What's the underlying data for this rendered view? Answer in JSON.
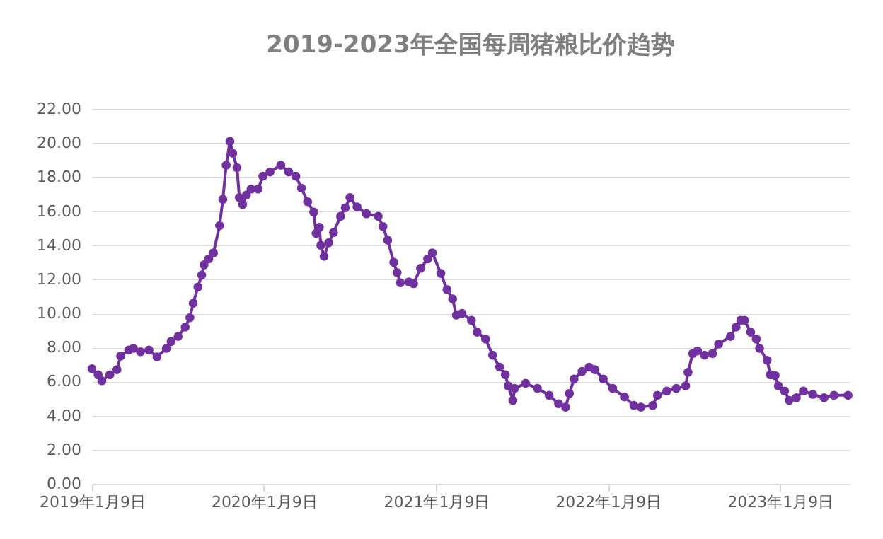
{
  "chart_data": {
    "type": "line",
    "title": "2019-2023年全国每周猪粮比价趋势",
    "x": [
      "2019-01-09",
      "2019-01-22",
      "2019-01-30",
      "2019-02-16",
      "2019-03-03",
      "2019-03-11",
      "2019-03-28",
      "2019-04-07",
      "2019-04-22",
      "2019-05-10",
      "2019-05-27",
      "2019-06-16",
      "2019-06-26",
      "2019-07-11",
      "2019-07-26",
      "2019-08-05",
      "2019-08-12",
      "2019-08-22",
      "2019-08-30",
      "2019-09-04",
      "2019-09-14",
      "2019-09-24",
      "2019-10-07",
      "2019-10-14",
      "2019-10-21",
      "2019-10-29",
      "2019-11-04",
      "2019-11-13",
      "2019-11-18",
      "2019-11-25",
      "2019-12-03",
      "2019-12-13",
      "2019-12-28",
      "2020-01-07",
      "2020-01-22",
      "2020-02-14",
      "2020-03-02",
      "2020-03-17",
      "2020-03-29",
      "2020-04-11",
      "2020-04-24",
      "2020-04-29",
      "2020-05-06",
      "2020-05-09",
      "2020-05-16",
      "2020-05-26",
      "2020-06-05",
      "2020-06-20",
      "2020-06-30",
      "2020-07-10",
      "2020-07-25",
      "2020-08-14",
      "2020-09-08",
      "2020-09-18",
      "2020-09-28",
      "2020-10-11",
      "2020-10-18",
      "2020-10-25",
      "2020-11-12",
      "2020-11-22",
      "2020-12-07",
      "2020-12-22",
      "2021-01-01",
      "2021-01-19",
      "2021-02-01",
      "2021-02-13",
      "2021-02-21",
      "2021-03-05",
      "2021-03-25",
      "2021-04-06",
      "2021-04-24",
      "2021-05-09",
      "2021-05-24",
      "2021-06-05",
      "2021-06-11",
      "2021-06-21",
      "2021-06-25",
      "2021-07-18",
      "2021-08-12",
      "2021-09-06",
      "2021-09-26",
      "2021-10-11",
      "2021-10-19",
      "2021-10-29",
      "2021-11-15",
      "2021-11-30",
      "2021-12-12",
      "2021-12-30",
      "2022-01-19",
      "2022-02-13",
      "2022-03-05",
      "2022-03-20",
      "2022-04-14",
      "2022-04-24",
      "2022-05-14",
      "2022-06-03",
      "2022-06-23",
      "2022-06-28",
      "2022-07-08",
      "2022-07-18",
      "2022-08-02",
      "2022-08-19",
      "2022-09-01",
      "2022-09-26",
      "2022-10-08",
      "2022-10-18",
      "2022-10-26",
      "2022-11-08",
      "2022-11-20",
      "2022-11-27",
      "2022-12-13",
      "2022-12-20",
      "2022-12-30",
      "2023-01-06",
      "2023-01-19",
      "2023-01-29",
      "2023-02-13",
      "2023-02-28",
      "2023-03-20",
      "2023-04-13",
      "2023-05-04",
      "2023-06-03"
    ],
    "series": [
      {
        "color": "#7030a0",
        "values": [
          6.75,
          6.4,
          6.05,
          6.4,
          6.7,
          7.5,
          7.85,
          7.95,
          7.75,
          7.85,
          7.45,
          7.95,
          8.35,
          8.65,
          9.2,
          9.75,
          10.6,
          11.55,
          12.25,
          12.85,
          13.2,
          13.55,
          15.15,
          16.7,
          18.7,
          20.1,
          19.4,
          18.55,
          16.8,
          16.4,
          16.95,
          17.3,
          17.3,
          18.05,
          18.3,
          18.7,
          18.3,
          18.05,
          17.35,
          16.55,
          15.95,
          14.7,
          15.05,
          14.0,
          13.35,
          14.15,
          14.75,
          15.7,
          16.2,
          16.8,
          16.25,
          15.85,
          15.7,
          15.1,
          14.3,
          13.0,
          12.4,
          11.8,
          11.85,
          11.75,
          12.65,
          13.2,
          13.55,
          12.35,
          11.4,
          10.85,
          9.9,
          10.0,
          9.6,
          8.9,
          8.5,
          7.55,
          6.85,
          6.4,
          5.75,
          4.9,
          5.6,
          5.9,
          5.6,
          5.2,
          4.7,
          4.5,
          5.3,
          6.15,
          6.6,
          6.85,
          6.7,
          6.15,
          5.6,
          5.1,
          4.6,
          4.5,
          4.6,
          5.2,
          5.45,
          5.6,
          5.75,
          6.55,
          7.65,
          7.8,
          7.55,
          7.65,
          8.2,
          8.65,
          9.2,
          9.6,
          9.6,
          8.9,
          8.5,
          7.95,
          7.25,
          6.4,
          6.35,
          5.75,
          5.45,
          4.9,
          5.05,
          5.45,
          5.25,
          5.05,
          5.2,
          5.2
        ]
      }
    ],
    "xlim": [
      "2019-01-09",
      "2023-06-05"
    ],
    "xticks": [
      {
        "value": "2019-01-09",
        "label": "2019年1月9日"
      },
      {
        "value": "2020-01-09",
        "label": "2020年1月9日"
      },
      {
        "value": "2021-01-09",
        "label": "2021年1月9日"
      },
      {
        "value": "2022-01-09",
        "label": "2022年1月9日"
      },
      {
        "value": "2023-01-09",
        "label": "2023年1月9日"
      }
    ],
    "ylim": [
      0,
      22
    ],
    "yticks": [
      {
        "value": 0,
        "label": "0.00"
      },
      {
        "value": 2,
        "label": "2.00"
      },
      {
        "value": 4,
        "label": "4.00"
      },
      {
        "value": 6,
        "label": "6.00"
      },
      {
        "value": 8,
        "label": "8.00"
      },
      {
        "value": 10,
        "label": "10.00"
      },
      {
        "value": 12,
        "label": "12.00"
      },
      {
        "value": 14,
        "label": "14.00"
      },
      {
        "value": 16,
        "label": "16.00"
      },
      {
        "value": 18,
        "label": "18.00"
      },
      {
        "value": 20,
        "label": "20.00"
      },
      {
        "value": 22,
        "label": "22.00"
      }
    ],
    "grid": "y",
    "marker": "circle",
    "line_style": "solid",
    "legend": false
  }
}
